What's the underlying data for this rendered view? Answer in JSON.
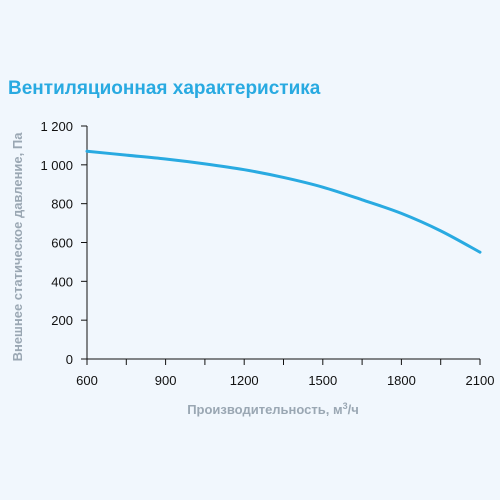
{
  "chart_data": {
    "type": "line",
    "title": "Вентиляционная характеристика",
    "xlabel": "Производительность, м",
    "xlabel_sup": "3",
    "xlabel_tail": "/ч",
    "ylabel": "Внешнее статическое давление, Па",
    "xlim": [
      600,
      2100
    ],
    "ylim": [
      0,
      1200
    ],
    "x_ticks": [
      600,
      900,
      1200,
      1500,
      1800,
      2100
    ],
    "x_tick_labels": [
      "600",
      "900",
      "1200",
      "1500",
      "1800",
      "2100"
    ],
    "y_ticks": [
      0,
      200,
      400,
      600,
      800,
      1000,
      1200
    ],
    "y_tick_labels": [
      "0",
      "200",
      "400",
      "600",
      "800",
      "1 000",
      "1 200"
    ],
    "grid": false,
    "series": [
      {
        "color": "#29aae1",
        "x": [
          600,
          750,
          900,
          1050,
          1200,
          1350,
          1500,
          1650,
          1800,
          1950,
          2100
        ],
        "values": [
          1070,
          1050,
          1030,
          1005,
          975,
          935,
          885,
          820,
          750,
          660,
          550
        ]
      }
    ]
  },
  "colors": {
    "background": "#f1f7fd",
    "accent": "#29aae1",
    "axis": "#111111",
    "axis_title": "#9aa7b3"
  }
}
